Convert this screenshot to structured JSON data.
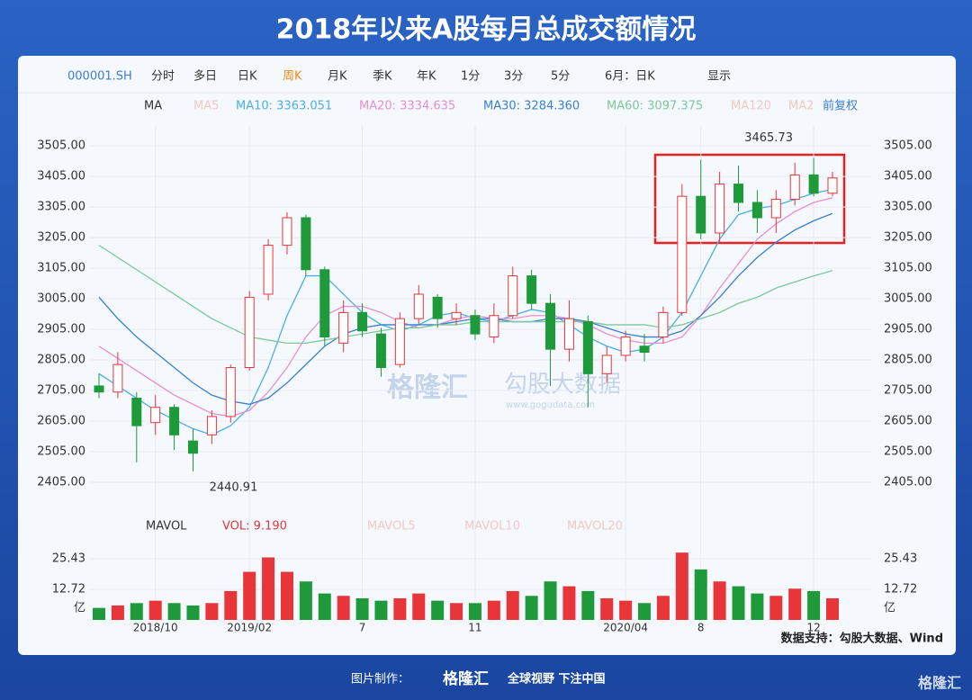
{
  "header": {
    "title": "2018年以来A股每月总成交额情况"
  },
  "toolbar": {
    "items": [
      "000001.SH",
      "分时",
      "多日",
      "日K",
      "周K",
      "月K",
      "季K",
      "年K",
      "1分",
      "3分",
      "5分",
      "6月：日K",
      "显示"
    ]
  },
  "ma_bar": {
    "label": "MA",
    "faint": [
      "MA5",
      "MA120",
      "MA2"
    ],
    "adjust": "前复权"
  },
  "vol_bar": {
    "label": "MAVOL",
    "vol": "VOL: 9.190",
    "faint": [
      "MAVOL5",
      "MAVOL10",
      "MAVOL20"
    ]
  },
  "chart_data": {
    "type": "candlestick",
    "up_color": "#e8353a",
    "down_color": "#1f9a3a",
    "categories": [
      null,
      null,
      null,
      "2018/10",
      null,
      null,
      null,
      null,
      "2019/02",
      null,
      null,
      null,
      null,
      null,
      "7",
      null,
      null,
      null,
      null,
      null,
      "11",
      null,
      null,
      null,
      null,
      null,
      null,
      null,
      "2020/04",
      null,
      null,
      null,
      "8",
      null,
      null,
      null,
      null,
      null,
      "12",
      null
    ],
    "candles": [
      {
        "open": 2720,
        "close": 2700,
        "high": 2760,
        "low": 2680
      },
      {
        "open": 2700,
        "close": 2790,
        "high": 2830,
        "low": 2680
      },
      {
        "open": 2680,
        "close": 2590,
        "high": 2700,
        "low": 2470
      },
      {
        "open": 2600,
        "close": 2650,
        "high": 2690,
        "low": 2560
      },
      {
        "open": 2650,
        "close": 2560,
        "high": 2660,
        "low": 2510
      },
      {
        "open": 2540,
        "close": 2500,
        "high": 2580,
        "low": 2440.91
      },
      {
        "open": 2560,
        "close": 2620,
        "high": 2640,
        "low": 2530
      },
      {
        "open": 2620,
        "close": 2780,
        "high": 2790,
        "low": 2600
      },
      {
        "open": 2780,
        "close": 3010,
        "high": 3030,
        "low": 2770
      },
      {
        "open": 3020,
        "close": 3180,
        "high": 3200,
        "low": 3000
      },
      {
        "open": 3180,
        "close": 3270,
        "high": 3288,
        "low": 3150
      },
      {
        "open": 3270,
        "close": 3100,
        "high": 3280,
        "low": 3080
      },
      {
        "open": 3100,
        "close": 2880,
        "high": 3110,
        "low": 2850
      },
      {
        "open": 2860,
        "close": 2960,
        "high": 3000,
        "low": 2830
      },
      {
        "open": 2960,
        "close": 2900,
        "high": 2990,
        "low": 2880
      },
      {
        "open": 2890,
        "close": 2780,
        "high": 2910,
        "low": 2750
      },
      {
        "open": 2790,
        "close": 2940,
        "high": 2960,
        "low": 2780
      },
      {
        "open": 2940,
        "close": 3020,
        "high": 3050,
        "low": 2920
      },
      {
        "open": 3010,
        "close": 2940,
        "high": 3020,
        "low": 2910
      },
      {
        "open": 2940,
        "close": 2960,
        "high": 2990,
        "low": 2920
      },
      {
        "open": 2950,
        "close": 2890,
        "high": 2970,
        "low": 2870
      },
      {
        "open": 2880,
        "close": 2950,
        "high": 2990,
        "low": 2860
      },
      {
        "open": 2950,
        "close": 3080,
        "high": 3110,
        "low": 2940
      },
      {
        "open": 3080,
        "close": 2990,
        "high": 3100,
        "low": 2970
      },
      {
        "open": 2990,
        "close": 2840,
        "high": 3020,
        "low": 2720
      },
      {
        "open": 2840,
        "close": 2940,
        "high": 3000,
        "low": 2800
      },
      {
        "open": 2930,
        "close": 2760,
        "high": 2950,
        "low": 2650
      },
      {
        "open": 2760,
        "close": 2820,
        "high": 2850,
        "low": 2730
      },
      {
        "open": 2820,
        "close": 2880,
        "high": 2900,
        "low": 2800
      },
      {
        "open": 2850,
        "close": 2830,
        "high": 2890,
        "low": 2800
      },
      {
        "open": 2880,
        "close": 2960,
        "high": 2980,
        "low": 2860
      },
      {
        "open": 2960,
        "close": 3340,
        "high": 3380,
        "low": 2950
      },
      {
        "open": 3340,
        "close": 3220,
        "high": 3460,
        "low": 3200
      },
      {
        "open": 3220,
        "close": 3380,
        "high": 3420,
        "low": 3190
      },
      {
        "open": 3380,
        "close": 3320,
        "high": 3440,
        "low": 3290
      },
      {
        "open": 3320,
        "close": 3270,
        "high": 3360,
        "low": 3220
      },
      {
        "open": 3270,
        "close": 3330,
        "high": 3360,
        "low": 3220
      },
      {
        "open": 3330,
        "close": 3410,
        "high": 3450,
        "low": 3310
      },
      {
        "open": 3410,
        "close": 3350,
        "high": 3465.73,
        "low": 3340
      },
      {
        "open": 3350,
        "close": 3400,
        "high": 3420,
        "low": 3340
      }
    ],
    "series": [
      {
        "name": "MA10: 3363.051",
        "color": "#4ab0e8",
        "values": [
          2760,
          2720,
          2680,
          2640,
          2610,
          2580,
          2560,
          2590,
          2650,
          2780,
          2950,
          3080,
          3080,
          3020,
          2960,
          2920,
          2900,
          2920,
          2950,
          2960,
          2940,
          2930,
          2950,
          2970,
          2960,
          2920,
          2880,
          2850,
          2830,
          2840,
          2880,
          2960,
          3080,
          3200,
          3280,
          3300,
          3310,
          3330,
          3350,
          3363
        ]
      },
      {
        "name": "MA20: 3334.635",
        "color": "#e88fd0",
        "values": [
          2850,
          2810,
          2770,
          2730,
          2690,
          2660,
          2630,
          2620,
          2640,
          2700,
          2780,
          2880,
          2950,
          2980,
          2980,
          2960,
          2930,
          2910,
          2920,
          2940,
          2950,
          2940,
          2940,
          2950,
          2950,
          2940,
          2920,
          2890,
          2870,
          2860,
          2860,
          2880,
          2950,
          3040,
          3120,
          3200,
          3250,
          3290,
          3320,
          3335
        ]
      },
      {
        "name": "MA30: 3284.360",
        "color": "#3a7fd0",
        "values": [
          3010,
          2940,
          2880,
          2830,
          2780,
          2730,
          2690,
          2670,
          2660,
          2680,
          2730,
          2790,
          2850,
          2890,
          2910,
          2920,
          2920,
          2920,
          2920,
          2930,
          2940,
          2940,
          2930,
          2930,
          2940,
          2940,
          2930,
          2910,
          2890,
          2880,
          2880,
          2900,
          2950,
          3010,
          3080,
          3140,
          3190,
          3230,
          3260,
          3284
        ]
      },
      {
        "name": "MA60: 3097.375",
        "color": "#7ec99a",
        "values": [
          3180,
          3140,
          3100,
          3060,
          3020,
          2980,
          2940,
          2910,
          2880,
          2870,
          2860,
          2860,
          2870,
          2880,
          2890,
          2900,
          2910,
          2910,
          2920,
          2920,
          2930,
          2930,
          2930,
          2930,
          2930,
          2930,
          2930,
          2920,
          2920,
          2920,
          2910,
          2920,
          2940,
          2960,
          2990,
          3010,
          3040,
          3060,
          3080,
          3097
        ]
      }
    ],
    "ylim": [
      2305,
      3570
    ],
    "yticks": [
      {
        "value": 2405,
        "label": "2405.00"
      },
      {
        "value": 2505,
        "label": "2505.00"
      },
      {
        "value": 2605,
        "label": "2605.00"
      },
      {
        "value": 2705,
        "label": "2705.00"
      },
      {
        "value": 2805,
        "label": "2805.00"
      },
      {
        "value": 2905,
        "label": "2905.00"
      },
      {
        "value": 3005,
        "label": "3005.00"
      },
      {
        "value": 3105,
        "label": "3105.00"
      },
      {
        "value": 3205,
        "label": "3205.00"
      },
      {
        "value": 3305,
        "label": "3305.00"
      },
      {
        "value": 3405,
        "label": "3405.00"
      },
      {
        "value": 3505,
        "label": "3505.00"
      }
    ],
    "annotations": [
      {
        "text": "3465.73",
        "at": 38
      },
      {
        "text": "2440.91",
        "at": 5
      }
    ],
    "volume": {
      "values": [
        5,
        6,
        7,
        8,
        7,
        6,
        7,
        12,
        20,
        26,
        20,
        16,
        11,
        10,
        9,
        8,
        9,
        11,
        8,
        7,
        7,
        8,
        12,
        10,
        16,
        14,
        12,
        9,
        8,
        7,
        10,
        28,
        21,
        16,
        14,
        11,
        10,
        13,
        12,
        9
      ],
      "ylim": [
        0,
        33.3
      ],
      "yticks": [
        12.72,
        25.43
      ],
      "unit": "亿"
    }
  },
  "watermark": {
    "brand": "格隆汇",
    "data": "勾股大数据",
    "url": "www.gogudata.com"
  },
  "footer": {
    "source": "数据支持：勾股大数据、Wind",
    "made": "图片制作：",
    "brand": "格隆汇",
    "slogan": "全球视野 下注中国",
    "corner": "格隆汇"
  }
}
